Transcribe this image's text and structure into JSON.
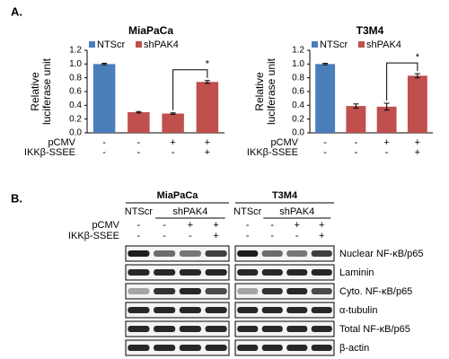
{
  "panel_a_label": "A.",
  "chart_data": [
    {
      "type": "bar",
      "title": "MiaPaCa",
      "ylabel": [
        "Relative",
        "luciferase unit"
      ],
      "categories": [
        null,
        null,
        null,
        null
      ],
      "series": [
        {
          "name": "NTScr",
          "color": "#4a7ebb",
          "values": [
            1.0,
            null,
            null,
            null
          ],
          "errors": [
            0.01,
            null,
            null,
            null
          ]
        },
        {
          "name": "shPAK4",
          "color": "#c0504d",
          "values": [
            null,
            0.3,
            0.28,
            0.74
          ],
          "errors": [
            null,
            0.01,
            0.01,
            0.02
          ]
        }
      ],
      "ylim": [
        0,
        1.2
      ],
      "yticks": [
        {
          "value": 0,
          "label": "0.0"
        },
        {
          "value": 0.2,
          "label": "0.2"
        },
        {
          "value": 0.4,
          "label": "0.4"
        },
        {
          "value": 0.6,
          "label": "0.6"
        },
        {
          "value": 0.8,
          "label": "0.8"
        },
        {
          "value": 1.0,
          "label": "1.0"
        },
        {
          "value": 1.2,
          "label": "1.2"
        }
      ],
      "annotation": "*",
      "conditions": [
        {
          "label": "pCMV",
          "marks": [
            "-",
            "-",
            "+",
            "+"
          ]
        },
        {
          "label": "IKKβ-SSEE",
          "marks": [
            "-",
            "-",
            "-",
            "+"
          ]
        }
      ]
    },
    {
      "type": "bar",
      "title": "T3M4",
      "ylabel": [
        "Relative",
        "luciferase unit"
      ],
      "categories": [
        null,
        null,
        null,
        null
      ],
      "series": [
        {
          "name": "NTScr",
          "color": "#4a7ebb",
          "values": [
            1.0,
            null,
            null,
            null
          ],
          "errors": [
            0.01,
            null,
            null,
            null
          ]
        },
        {
          "name": "shPAK4",
          "color": "#c0504d",
          "values": [
            null,
            0.39,
            0.38,
            0.83
          ],
          "errors": [
            null,
            0.03,
            0.05,
            0.03
          ]
        }
      ],
      "ylim": [
        0,
        1.2
      ],
      "yticks": [
        {
          "value": 0,
          "label": "0.0"
        },
        {
          "value": 0.2,
          "label": "0.2"
        },
        {
          "value": 0.4,
          "label": "0.4"
        },
        {
          "value": 0.6,
          "label": "0.6"
        },
        {
          "value": 0.8,
          "label": "0.8"
        },
        {
          "value": 1.0,
          "label": "1.0"
        },
        {
          "value": 1.2,
          "label": "1.2"
        }
      ],
      "annotation": "*",
      "conditions": [
        {
          "label": "pCMV",
          "marks": [
            "-",
            "-",
            "+",
            "+"
          ]
        },
        {
          "label": "IKKβ-SSEE",
          "marks": [
            "-",
            "-",
            "-",
            "+"
          ]
        }
      ]
    }
  ],
  "panel_b": {
    "label": "B.",
    "groups": [
      {
        "name": "MiaPaCa",
        "headers": [
          "NTScr",
          "shPAK4"
        ]
      },
      {
        "name": "T3M4",
        "headers": [
          "NTScr",
          "shPAK4"
        ]
      }
    ],
    "conditions": [
      {
        "label": "pCMV",
        "marks": [
          "-",
          "-",
          "+",
          "+"
        ]
      },
      {
        "label": "IKKβ-SSEE",
        "marks": [
          "-",
          "-",
          "-",
          "+"
        ]
      }
    ],
    "blots": [
      "Nuclear NF-κB/p65",
      "Laminin",
      "Cyto. NF-κB/p65",
      "α-tubulin",
      "Total NF-κB/p65",
      "β-actin"
    ]
  }
}
